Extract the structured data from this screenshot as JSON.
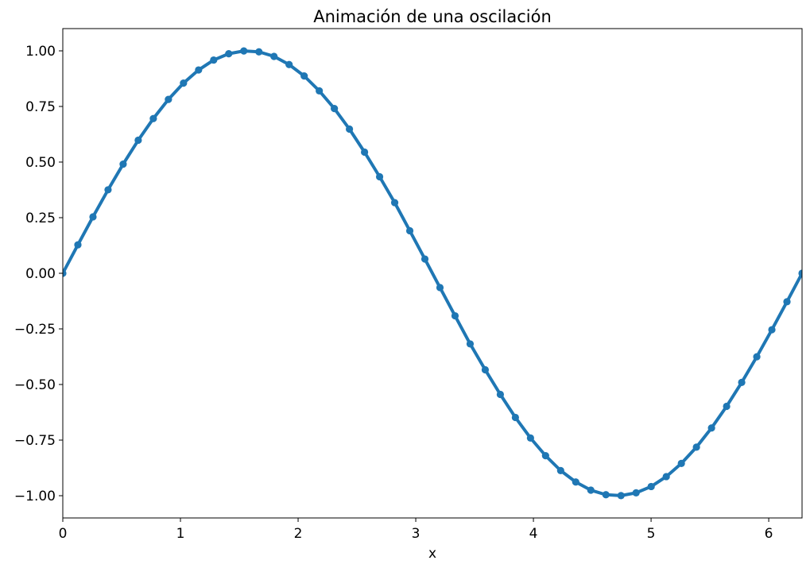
{
  "chart_data": {
    "type": "line",
    "title": "Animación de una oscilación",
    "xlabel": "x",
    "ylabel": "",
    "xlim": [
      0,
      6.2832
    ],
    "ylim": [
      -1.1,
      1.1
    ],
    "grid": false,
    "legend": false,
    "color": "#1f77b4",
    "marker": "circle",
    "xticks": [
      0,
      1,
      2,
      3,
      4,
      5,
      6
    ],
    "xtick_labels": [
      "0",
      "1",
      "2",
      "3",
      "4",
      "5",
      "6"
    ],
    "yticks": [
      -1.0,
      -0.75,
      -0.5,
      -0.25,
      0.0,
      0.25,
      0.5,
      0.75,
      1.0
    ],
    "ytick_labels": [
      "−1.00",
      "−0.75",
      "−0.50",
      "−0.25",
      "0.00",
      "0.25",
      "0.50",
      "0.75",
      "1.00"
    ],
    "series": [
      {
        "x": [
          0.0,
          0.1282,
          0.2565,
          0.3847,
          0.5129,
          0.6411,
          0.7694,
          0.8976,
          1.0258,
          1.1541,
          1.2823,
          1.4105,
          1.5387,
          1.667,
          1.7952,
          1.9234,
          2.0517,
          2.1799,
          2.3081,
          2.4363,
          2.5646,
          2.6928,
          2.821,
          2.9493,
          3.0775,
          3.2057,
          3.3339,
          3.4622,
          3.5904,
          3.7186,
          3.8468,
          3.9751,
          4.1033,
          4.2315,
          4.3598,
          4.488,
          4.6162,
          4.7444,
          4.8727,
          5.0009,
          5.1291,
          5.2574,
          5.3856,
          5.5138,
          5.642,
          5.7703,
          5.8985,
          6.0267,
          6.155,
          6.2832
        ],
        "y": [
          0.0,
          0.1279,
          0.2537,
          0.3753,
          0.4907,
          0.5981,
          0.6956,
          0.7818,
          0.855,
          0.9141,
          0.9587,
          0.9871,
          0.9995,
          0.9955,
          0.9751,
          0.9385,
          0.8871,
          0.8201,
          0.7406,
          0.6482,
          0.5446,
          0.4339,
          0.3176,
          0.1912,
          0.0641,
          -0.0641,
          -0.1912,
          -0.3176,
          -0.4339,
          -0.5446,
          -0.6482,
          -0.7406,
          -0.8201,
          -0.8871,
          -0.9385,
          -0.9751,
          -0.9955,
          -0.9995,
          -0.9871,
          -0.9587,
          -0.9141,
          -0.855,
          -0.7818,
          -0.6956,
          -0.5981,
          -0.4907,
          -0.3753,
          -0.2537,
          -0.1279,
          0.0
        ]
      }
    ]
  }
}
